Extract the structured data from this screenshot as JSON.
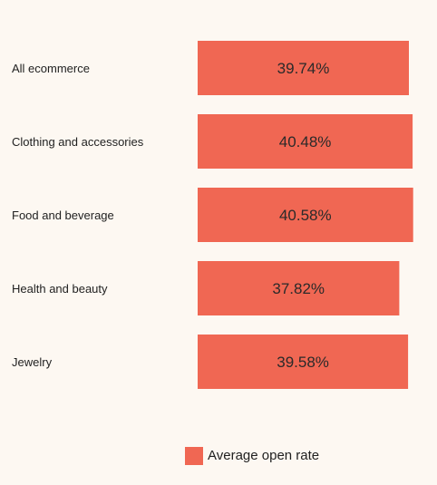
{
  "chart_data": {
    "type": "bar",
    "orientation": "horizontal",
    "categories": [
      "All ecommerce",
      "Clothing and accessories",
      "Food and beverage",
      "Health and beauty",
      "Jewelry"
    ],
    "series": [
      {
        "name": "Average open rate",
        "values": [
          39.74,
          40.48,
          40.58,
          37.82,
          39.58
        ],
        "labels": [
          "39.74%",
          "40.48%",
          "40.58%",
          "37.82%",
          "39.58%"
        ]
      }
    ],
    "grid": false,
    "legend_position": "bottom",
    "colors": {
      "bar": "#f06753",
      "background": "#fdf8f2"
    }
  }
}
